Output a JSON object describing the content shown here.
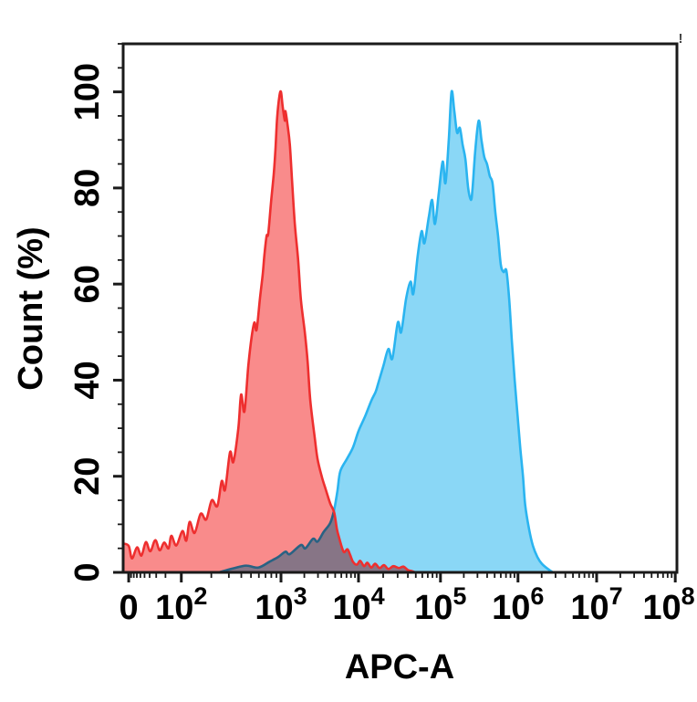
{
  "figure": {
    "corner_mark": "!",
    "background": "#ffffff"
  },
  "chart_data": {
    "type": "area",
    "subtype": "flow-cytometry-overlay-histogram",
    "title": "",
    "xlabel": "APC-A",
    "ylabel": "Count (%)",
    "x_scale": "biexponential (linear zero region, log decades 10^2 to 10^8)",
    "grid": false,
    "legend": false,
    "ylim": [
      0,
      110
    ],
    "y_major_ticks": [
      0,
      20,
      40,
      60,
      80,
      100
    ],
    "y_minor_step": 5,
    "axis_color": "#1a1a1a",
    "x_ticks": [
      {
        "label": "0",
        "frac": 0.01
      },
      {
        "base": "10",
        "exp": "2",
        "frac": 0.105
      },
      {
        "base": "10",
        "exp": "3",
        "frac": 0.285
      },
      {
        "base": "10",
        "exp": "4",
        "frac": 0.425
      },
      {
        "base": "10",
        "exp": "5",
        "frac": 0.573
      },
      {
        "base": "10",
        "exp": "6",
        "frac": 0.713
      },
      {
        "base": "10",
        "exp": "7",
        "frac": 0.855
      },
      {
        "base": "10",
        "exp": "8",
        "frac": 0.997
      }
    ],
    "series": [
      {
        "name": "blue",
        "fill": "#8AD7F6",
        "stroke": "#2AB4F0",
        "points": [
          [
            0.173,
            0
          ],
          [
            0.198,
            0.8
          ],
          [
            0.222,
            1.4
          ],
          [
            0.244,
            1.0
          ],
          [
            0.264,
            2.2
          ],
          [
            0.28,
            3.2
          ],
          [
            0.293,
            4.3
          ],
          [
            0.301,
            3.8
          ],
          [
            0.321,
            5.7
          ],
          [
            0.329,
            5.0
          ],
          [
            0.343,
            7.0
          ],
          [
            0.351,
            6.4
          ],
          [
            0.362,
            8.4
          ],
          [
            0.374,
            10.3
          ],
          [
            0.381,
            13
          ],
          [
            0.387,
            17
          ],
          [
            0.392,
            21
          ],
          [
            0.404,
            23.6
          ],
          [
            0.415,
            26
          ],
          [
            0.425,
            29.4
          ],
          [
            0.437,
            32.5
          ],
          [
            0.448,
            35.7
          ],
          [
            0.456,
            37.6
          ],
          [
            0.461,
            39.5
          ],
          [
            0.47,
            43
          ],
          [
            0.479,
            46.5
          ],
          [
            0.486,
            44.5
          ],
          [
            0.496,
            52
          ],
          [
            0.502,
            50
          ],
          [
            0.511,
            57
          ],
          [
            0.519,
            60.5
          ],
          [
            0.524,
            58
          ],
          [
            0.532,
            66
          ],
          [
            0.539,
            71
          ],
          [
            0.544,
            68.5
          ],
          [
            0.552,
            74
          ],
          [
            0.558,
            77.5
          ],
          [
            0.563,
            72.5
          ],
          [
            0.57,
            79
          ],
          [
            0.577,
            85.5
          ],
          [
            0.582,
            81
          ],
          [
            0.588,
            90
          ],
          [
            0.593,
            100
          ],
          [
            0.598,
            96
          ],
          [
            0.603,
            91.5
          ],
          [
            0.608,
            92.5
          ],
          [
            0.613,
            89
          ],
          [
            0.618,
            86
          ],
          [
            0.623,
            80
          ],
          [
            0.628,
            77.5
          ],
          [
            0.631,
            80
          ],
          [
            0.636,
            88
          ],
          [
            0.642,
            94
          ],
          [
            0.647,
            90
          ],
          [
            0.652,
            86.5
          ],
          [
            0.657,
            85
          ],
          [
            0.662,
            82.5
          ],
          [
            0.667,
            81
          ],
          [
            0.672,
            75
          ],
          [
            0.677,
            70
          ],
          [
            0.682,
            64
          ],
          [
            0.687,
            62.5
          ],
          [
            0.692,
            62.8
          ],
          [
            0.697,
            57
          ],
          [
            0.702,
            48
          ],
          [
            0.707,
            40
          ],
          [
            0.712,
            33
          ],
          [
            0.717,
            26
          ],
          [
            0.722,
            20
          ],
          [
            0.726,
            14
          ],
          [
            0.733,
            9
          ],
          [
            0.74,
            5.5
          ],
          [
            0.748,
            3.2
          ],
          [
            0.756,
            1.8
          ],
          [
            0.766,
            0.8
          ],
          [
            0.776,
            0
          ]
        ]
      },
      {
        "name": "red",
        "fill": "#F98B8B",
        "stroke": "#EE2F2F",
        "points": [
          [
            0.0,
            6.0
          ],
          [
            0.01,
            5.5
          ],
          [
            0.016,
            2.9
          ],
          [
            0.025,
            5.2
          ],
          [
            0.033,
            3.5
          ],
          [
            0.041,
            6.3
          ],
          [
            0.049,
            4.4
          ],
          [
            0.058,
            6.7
          ],
          [
            0.066,
            4.6
          ],
          [
            0.074,
            6.2
          ],
          [
            0.082,
            5.0
          ],
          [
            0.087,
            7.6
          ],
          [
            0.096,
            5.6
          ],
          [
            0.107,
            8.6
          ],
          [
            0.114,
            6.6
          ],
          [
            0.12,
            10.5
          ],
          [
            0.129,
            8.2
          ],
          [
            0.14,
            12.2
          ],
          [
            0.15,
            11.0
          ],
          [
            0.16,
            15.0
          ],
          [
            0.17,
            13.8
          ],
          [
            0.178,
            19.0
          ],
          [
            0.184,
            17.2
          ],
          [
            0.193,
            25.0
          ],
          [
            0.199,
            23.0
          ],
          [
            0.208,
            30.0
          ],
          [
            0.213,
            37.0
          ],
          [
            0.219,
            33.5
          ],
          [
            0.226,
            43.0
          ],
          [
            0.232,
            49.0
          ],
          [
            0.237,
            52.0
          ],
          [
            0.241,
            50.5
          ],
          [
            0.247,
            57.0
          ],
          [
            0.252,
            62.0
          ],
          [
            0.255,
            66.0
          ],
          [
            0.259,
            70.0
          ],
          [
            0.262,
            70.5
          ],
          [
            0.267,
            77.0
          ],
          [
            0.272,
            83.0
          ],
          [
            0.275,
            88.0
          ],
          [
            0.278,
            94.5
          ],
          [
            0.282,
            99.0
          ],
          [
            0.285,
            100.0
          ],
          [
            0.288,
            97.0
          ],
          [
            0.292,
            94.0
          ],
          [
            0.293,
            96.0
          ],
          [
            0.297,
            93.0
          ],
          [
            0.301,
            89.0
          ],
          [
            0.305,
            81.5
          ],
          [
            0.31,
            72.5
          ],
          [
            0.316,
            65.0
          ],
          [
            0.321,
            56.7
          ],
          [
            0.328,
            50.0
          ],
          [
            0.333,
            44.0
          ],
          [
            0.338,
            35.7
          ],
          [
            0.346,
            28.0
          ],
          [
            0.351,
            23.6
          ],
          [
            0.359,
            19.8
          ],
          [
            0.366,
            17.2
          ],
          [
            0.374,
            14.3
          ],
          [
            0.381,
            12.5
          ],
          [
            0.386,
            9.0
          ],
          [
            0.39,
            7.2
          ],
          [
            0.395,
            5.2
          ],
          [
            0.399,
            4.2
          ],
          [
            0.405,
            4.8
          ],
          [
            0.41,
            3.6
          ],
          [
            0.415,
            2.2
          ],
          [
            0.422,
            1.6
          ],
          [
            0.428,
            2.4
          ],
          [
            0.435,
            1.3
          ],
          [
            0.441,
            2.0
          ],
          [
            0.448,
            1.0
          ],
          [
            0.455,
            1.8
          ],
          [
            0.463,
            0.9
          ],
          [
            0.471,
            1.5
          ],
          [
            0.479,
            0.7
          ],
          [
            0.488,
            1.3
          ],
          [
            0.498,
            0.9
          ],
          [
            0.506,
            1.2
          ],
          [
            0.514,
            0.5
          ],
          [
            0.52,
            0.3
          ],
          [
            0.528,
            0.0
          ]
        ]
      }
    ]
  }
}
